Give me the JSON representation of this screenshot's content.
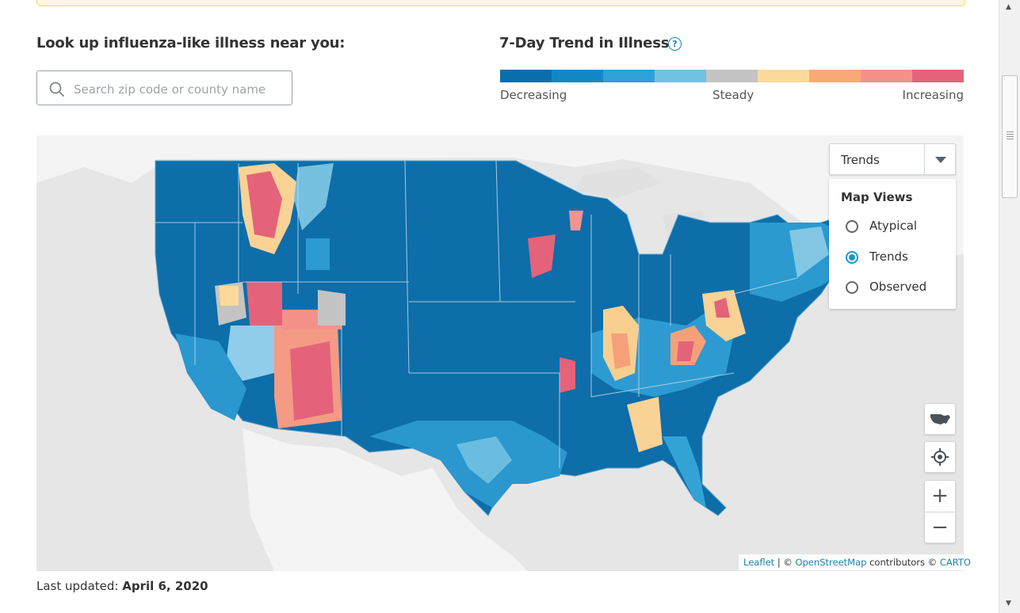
{
  "lookup": {
    "title": "Look up influenza-like illness near you:",
    "search_placeholder": "Search zip code or county name"
  },
  "trend": {
    "title": "7-Day Trend in Illness",
    "help_icon": "question-circle-icon",
    "scale_colors": [
      "#0a6eab",
      "#1288c6",
      "#2ea1d6",
      "#73c1e0",
      "#c4c4c4",
      "#fbd99a",
      "#f8aa76",
      "#f4918a",
      "#e4637a"
    ],
    "label_decreasing": "Decreasing",
    "label_steady": "Steady",
    "label_increasing": "Increasing"
  },
  "map": {
    "view_selected": "Trends",
    "views_title": "Map Views",
    "views": [
      {
        "label": "Atypical",
        "selected": false
      },
      {
        "label": "Trends",
        "selected": true
      },
      {
        "label": "Observed",
        "selected": false
      }
    ],
    "controls": {
      "usa_icon": "usa-map-icon",
      "locate_icon": "crosshair-icon",
      "zoom_in": "+",
      "zoom_out": "−"
    },
    "attribution": {
      "leaflet": "Leaflet",
      "sep": "| ©",
      "osm": "OpenStreetMap",
      "contributors": "contributors ©",
      "carto": "CARTO"
    }
  },
  "footer": {
    "updated_label": "Last updated:",
    "updated_date": "April 6, 2020"
  }
}
